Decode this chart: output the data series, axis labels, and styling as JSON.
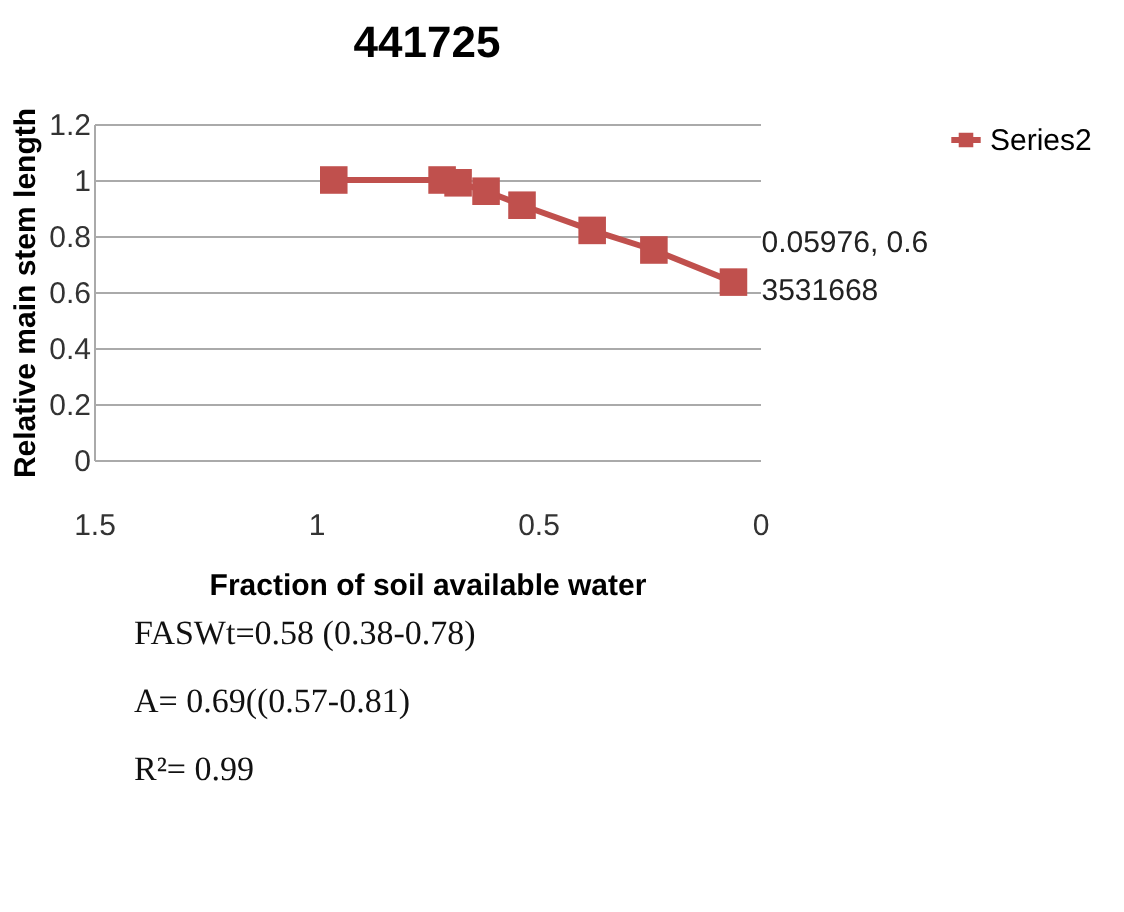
{
  "chart_data": {
    "type": "line",
    "title": "441725",
    "xlabel": "Fraction of soil available water",
    "ylabel": "Relative main stem length",
    "x": [
      0.96,
      0.716,
      0.68,
      0.617,
      0.536,
      0.378,
      0.239,
      0.05976
    ],
    "series": [
      {
        "name": "Series2",
        "color": "#c0504d",
        "values": [
          1.0,
          1.0,
          0.99,
          0.96,
          0.91,
          0.82,
          0.75,
          0.63531668
        ]
      }
    ],
    "xlim": [
      1.5,
      0
    ],
    "xticks": [
      1.5,
      1,
      0.5,
      0
    ],
    "ylim": [
      0,
      1.2
    ],
    "yticks": [
      0,
      0.2,
      0.4,
      0.6,
      0.8,
      1,
      1.2
    ],
    "grid": "y",
    "legend": "right",
    "marker": "square",
    "line_style": "solid",
    "annotations": [
      {
        "text": "0.05976, 0.63531668",
        "x": 0.05976,
        "y": 0.63531668
      },
      "FASWt=0.58 (0.38-0.78)",
      "A= 0.69((0.57-0.81)",
      "R²= 0.99"
    ]
  }
}
